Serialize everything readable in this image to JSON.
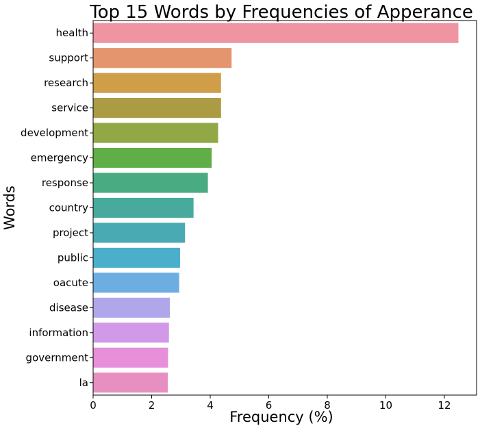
{
  "chart_data": {
    "type": "bar",
    "orientation": "horizontal",
    "title": "Top 15 Words by Frequencies of Apperance",
    "xlabel": "Frequency (%)",
    "ylabel": "Words",
    "categories": [
      "health",
      "support",
      "research",
      "service",
      "development",
      "emergency",
      "response",
      "country",
      "project",
      "public",
      "oacute",
      "disease",
      "information",
      "government",
      "la"
    ],
    "values": [
      12.48,
      4.73,
      4.37,
      4.37,
      4.27,
      4.05,
      3.92,
      3.43,
      3.14,
      2.97,
      2.94,
      2.62,
      2.59,
      2.56,
      2.55
    ],
    "colors": [
      "#ef94a2",
      "#e5956e",
      "#d09d48",
      "#ab9b43",
      "#92a745",
      "#60ae47",
      "#48ab82",
      "#48aa9c",
      "#4aaab4",
      "#4baeca",
      "#6daee2",
      "#b0a7eb",
      "#d299e8",
      "#e78fd9",
      "#e68fc0"
    ],
    "xlim": [
      0,
      13.1
    ],
    "xticks": [
      0,
      2,
      4,
      6,
      8,
      10,
      12
    ],
    "xtick_labels": [
      "0",
      "2",
      "4",
      "6",
      "8",
      "10",
      "12"
    ],
    "grid": false,
    "legend": "none"
  }
}
